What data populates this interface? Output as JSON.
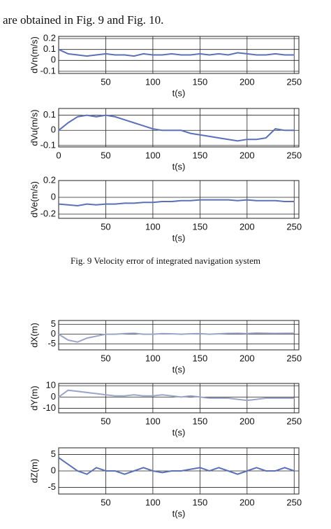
{
  "text": "are obtained  in Fig. 9 and Fig. 10.",
  "caption": "Fig. 9 Velocity error of integrated navigation system",
  "chart_data": [
    {
      "type": "line",
      "ylabel": "dVn(m/s)",
      "xlabel": "t(s)",
      "x": [
        0,
        10,
        20,
        30,
        40,
        50,
        60,
        70,
        80,
        90,
        100,
        110,
        120,
        130,
        140,
        150,
        160,
        170,
        180,
        190,
        200,
        210,
        220,
        230,
        240,
        250
      ],
      "series": [
        {
          "color": "#5a70b8",
          "values": [
            0.1,
            0.06,
            0.05,
            0.04,
            0.05,
            0.06,
            0.05,
            0.05,
            0.04,
            0.06,
            0.05,
            0.05,
            0.06,
            0.05,
            0.05,
            0.06,
            0.05,
            0.06,
            0.05,
            0.07,
            0.06,
            0.05,
            0.05,
            0.06,
            0.05,
            0.05
          ]
        }
      ],
      "xlim": [
        0,
        255
      ],
      "ylim": [
        -0.12,
        0.22
      ],
      "xticks": [
        50,
        100,
        150,
        200,
        250
      ],
      "yticks": [
        -0.1,
        0,
        0.1,
        0.2
      ],
      "grid": true
    },
    {
      "type": "line",
      "ylabel": "dVu(m/s)",
      "xlabel": "t(s)",
      "x": [
        0,
        10,
        20,
        30,
        40,
        50,
        60,
        70,
        80,
        90,
        100,
        110,
        120,
        130,
        140,
        150,
        160,
        170,
        180,
        190,
        200,
        210,
        220,
        230,
        240,
        250
      ],
      "series": [
        {
          "color": "#5a70b8",
          "values": [
            0,
            0.05,
            0.09,
            0.1,
            0.09,
            0.1,
            0.09,
            0.07,
            0.05,
            0.03,
            0.01,
            0,
            0,
            0,
            -0.02,
            -0.03,
            -0.04,
            -0.05,
            -0.06,
            -0.07,
            -0.06,
            -0.06,
            -0.05,
            0.01,
            0,
            0
          ]
        }
      ],
      "xlim": [
        0,
        255
      ],
      "ylim": [
        -0.11,
        0.145
      ],
      "xticks": [
        0,
        50,
        100,
        150,
        200,
        250
      ],
      "yticks": [
        -0.1,
        0,
        0.1
      ],
      "grid": true
    },
    {
      "type": "line",
      "ylabel": "dVe(m/s)",
      "xlabel": "t(s)",
      "x": [
        0,
        10,
        20,
        30,
        40,
        50,
        60,
        70,
        80,
        90,
        100,
        110,
        120,
        130,
        140,
        150,
        160,
        170,
        180,
        190,
        200,
        210,
        220,
        230,
        240,
        250
      ],
      "series": [
        {
          "color": "#5a70b8",
          "values": [
            -0.08,
            -0.09,
            -0.1,
            -0.08,
            -0.09,
            -0.08,
            -0.08,
            -0.07,
            -0.07,
            -0.06,
            -0.06,
            -0.05,
            -0.05,
            -0.04,
            -0.04,
            -0.03,
            -0.03,
            -0.03,
            -0.03,
            -0.04,
            -0.03,
            -0.04,
            -0.04,
            -0.04,
            -0.05,
            -0.05
          ]
        }
      ],
      "xlim": [
        0,
        255
      ],
      "ylim": [
        -0.25,
        0.2
      ],
      "xticks": [
        50,
        100,
        150,
        200,
        250
      ],
      "yticks": [
        -0.2,
        0,
        0.2
      ],
      "grid": true
    },
    {
      "type": "line",
      "ylabel": "dX(m)",
      "xlabel": "t(s)",
      "x": [
        0,
        10,
        20,
        30,
        40,
        50,
        60,
        70,
        80,
        90,
        100,
        110,
        120,
        130,
        140,
        150,
        160,
        170,
        180,
        190,
        200,
        210,
        220,
        230,
        240,
        250
      ],
      "series": [
        {
          "color": "#9aa5c8",
          "values": [
            0,
            -3,
            -4,
            -2,
            -1,
            0,
            0,
            0.3,
            0.5,
            0,
            0,
            0.3,
            0.2,
            0,
            0.2,
            0.3,
            0,
            0.2,
            0.4,
            0.5,
            0.3,
            0.6,
            0.5,
            0.4,
            0.5,
            0.5
          ]
        }
      ],
      "xlim": [
        0,
        255
      ],
      "ylim": [
        -8,
        7
      ],
      "xticks": [
        50,
        100,
        150,
        200,
        250
      ],
      "yticks": [
        -5,
        0,
        5
      ],
      "grid": true
    },
    {
      "type": "line",
      "ylabel": "dY(m)",
      "xlabel": "t(s)",
      "x": [
        0,
        10,
        20,
        30,
        40,
        50,
        60,
        70,
        80,
        90,
        100,
        110,
        120,
        130,
        140,
        150,
        160,
        170,
        180,
        190,
        200,
        210,
        220,
        230,
        240,
        250
      ],
      "series": [
        {
          "color": "#9aa5c8",
          "values": [
            0,
            6,
            5,
            4,
            3,
            2,
            1,
            1,
            2,
            1,
            1,
            2,
            1,
            0,
            1,
            0,
            -1,
            -1,
            -1,
            -2,
            -3,
            -2,
            -1,
            -1,
            -1,
            -1
          ]
        }
      ],
      "xlim": [
        0,
        255
      ],
      "ylim": [
        -14,
        12
      ],
      "xticks": [
        50,
        100,
        150,
        200,
        250
      ],
      "yticks": [
        -10,
        0,
        10
      ],
      "grid": true
    },
    {
      "type": "line",
      "ylabel": "dZ(m)",
      "xlabel": "t(s)",
      "x": [
        0,
        10,
        20,
        30,
        40,
        50,
        60,
        70,
        80,
        90,
        100,
        110,
        120,
        130,
        140,
        150,
        160,
        170,
        180,
        190,
        200,
        210,
        220,
        230,
        240,
        250
      ],
      "series": [
        {
          "color": "#5a70b8",
          "values": [
            4,
            2,
            0,
            -1,
            1,
            0,
            0,
            -1,
            0,
            1,
            0,
            -0.5,
            0,
            0,
            0.5,
            1,
            0,
            1,
            0,
            -1,
            0,
            1,
            0,
            0,
            1,
            0
          ]
        }
      ],
      "xlim": [
        0,
        255
      ],
      "ylim": [
        -7,
        7
      ],
      "xticks": [
        50,
        100,
        150,
        200,
        250
      ],
      "yticks": [
        -5,
        0,
        5
      ],
      "grid": true
    }
  ]
}
